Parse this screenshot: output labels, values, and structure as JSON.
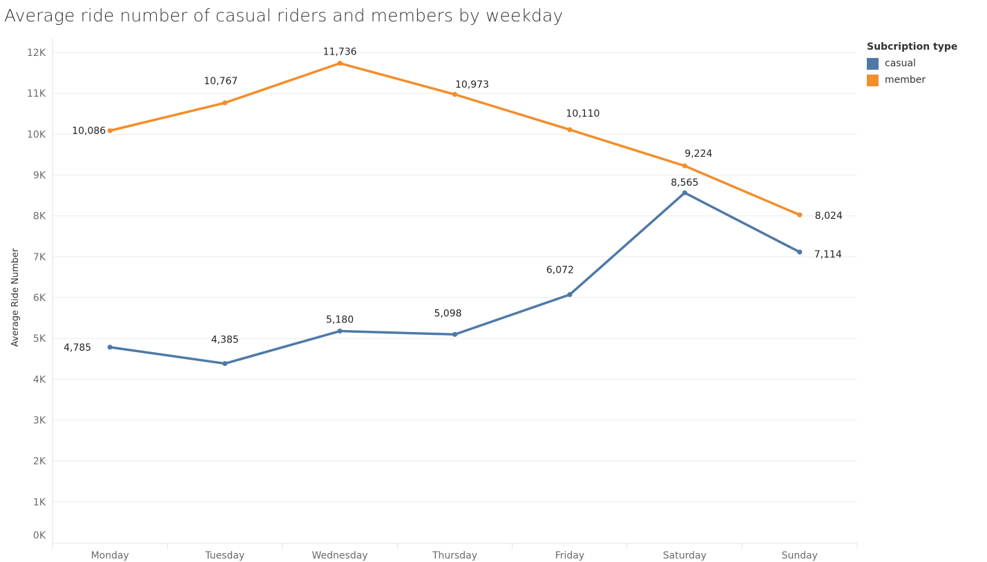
{
  "title": "Average ride number of casual riders and members by weekday",
  "legend": {
    "title": "Subcription type",
    "items": [
      {
        "label": "casual",
        "color": "#4e79a7"
      },
      {
        "label": "member",
        "color": "#f28e2b"
      }
    ]
  },
  "chart_data": {
    "type": "line",
    "title": "Average ride number of casual riders and members by weekday",
    "xlabel": "",
    "ylabel": "Average Ride Number",
    "categories": [
      "Monday",
      "Tuesday",
      "Wednesday",
      "Thursday",
      "Friday",
      "Saturday",
      "Sunday"
    ],
    "ylim": [
      0,
      12000
    ],
    "yticks": [
      0,
      1000,
      2000,
      3000,
      4000,
      5000,
      6000,
      7000,
      8000,
      9000,
      10000,
      11000,
      12000
    ],
    "ytick_labels": [
      "0K",
      "1K",
      "2K",
      "3K",
      "4K",
      "5K",
      "6K",
      "7K",
      "8K",
      "9K",
      "10K",
      "11K",
      "12K"
    ],
    "grid": true,
    "legend_position": "top-right",
    "series": [
      {
        "name": "casual",
        "color": "#4e79a7",
        "values": [
          4785,
          4385,
          5180,
          5098,
          6072,
          8565,
          7114
        ],
        "labels": [
          "4,785",
          "4,385",
          "5,180",
          "5,098",
          "6,072",
          "8,565",
          "7,114"
        ]
      },
      {
        "name": "member",
        "color": "#f28e2b",
        "values": [
          10086,
          10767,
          11736,
          10973,
          10110,
          9224,
          8024
        ],
        "labels": [
          "10,086",
          "10,767",
          "11,736",
          "10,973",
          "10,110",
          "9,224",
          "8,024"
        ]
      }
    ]
  }
}
